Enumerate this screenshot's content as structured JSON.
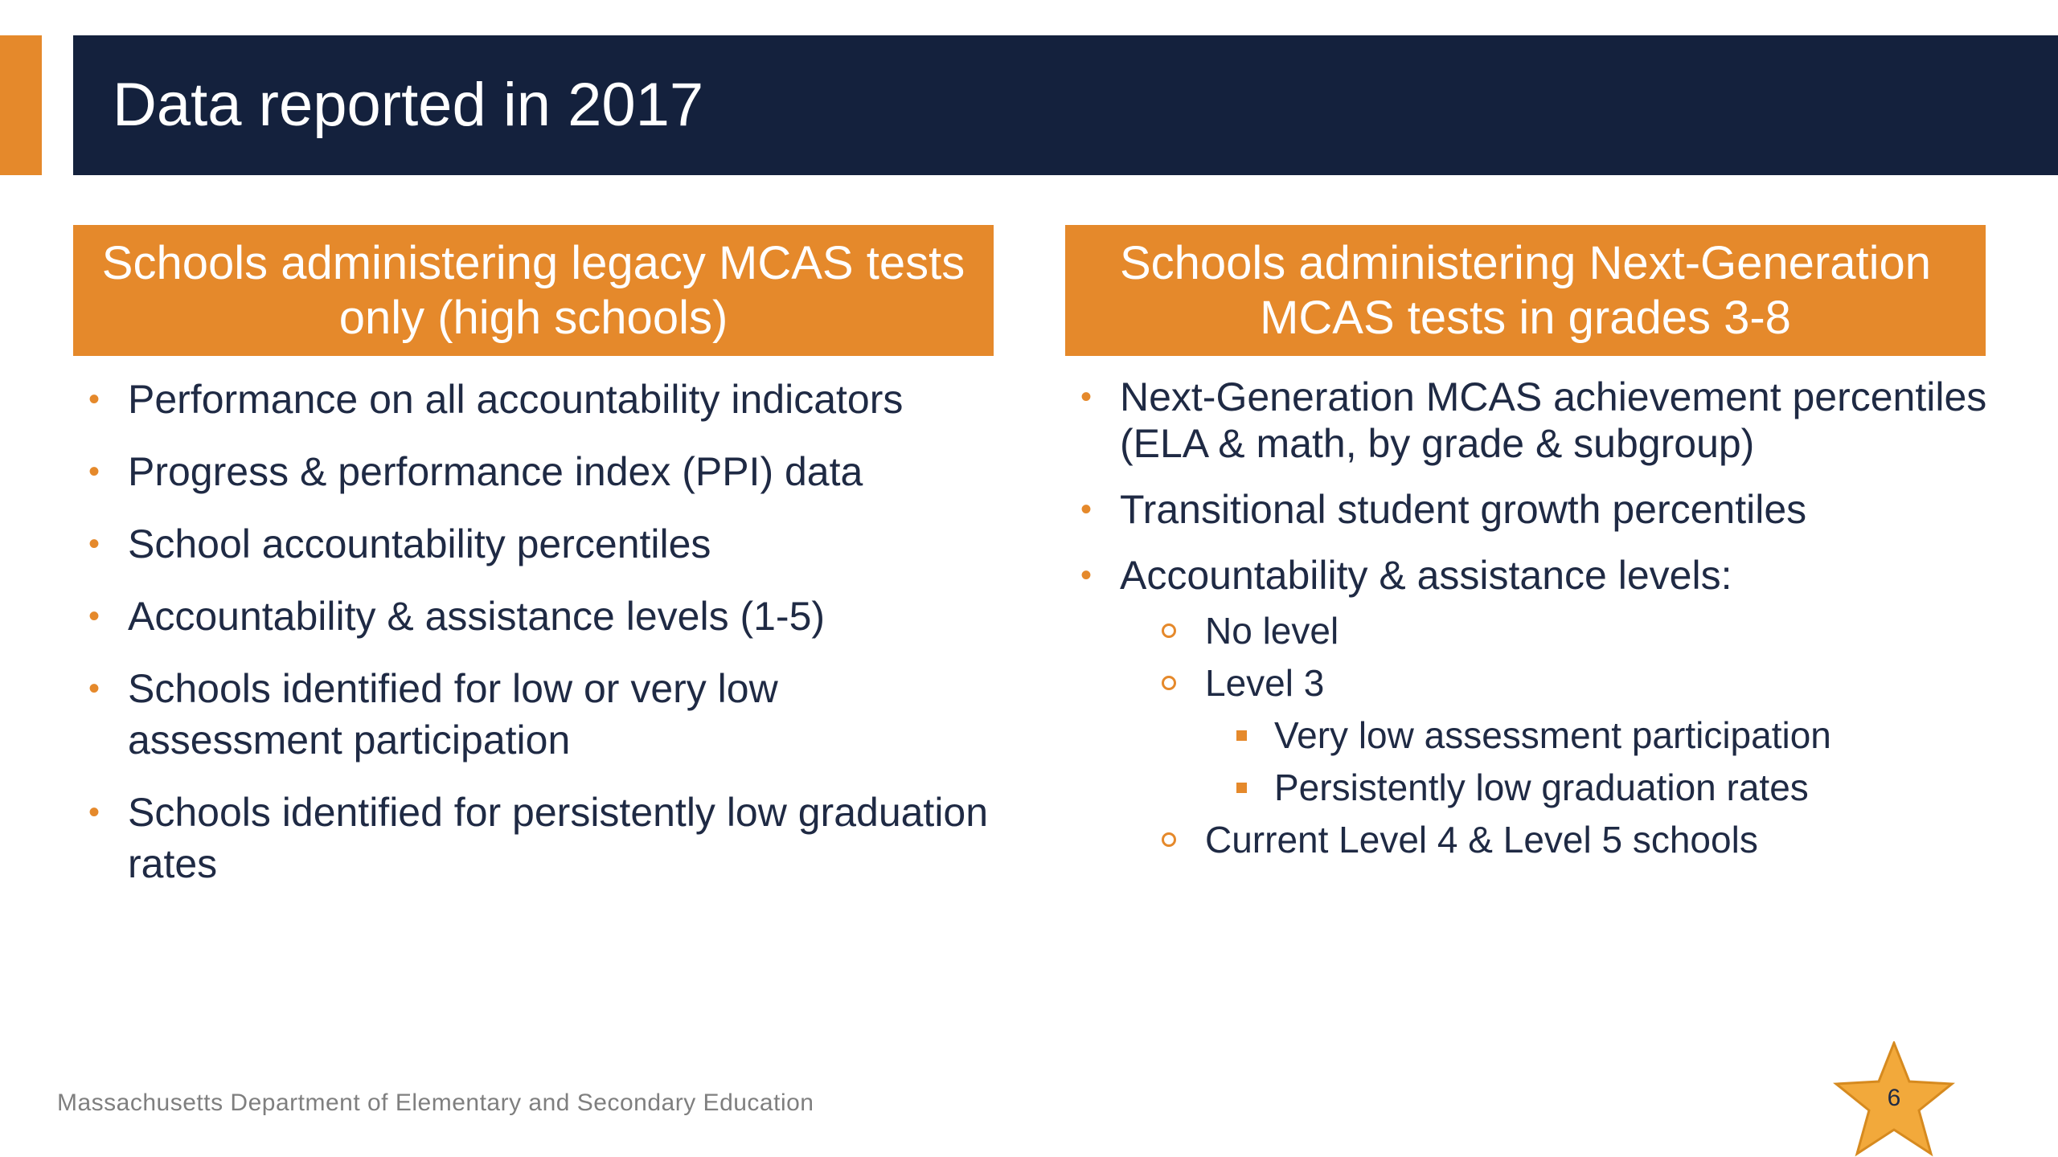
{
  "slide": {
    "title": "Data reported in 2017",
    "footer": "Massachusetts Department of Elementary and Secondary Education",
    "page_number": "6"
  },
  "left_column": {
    "header": "Schools administering legacy MCAS tests only (high schools)",
    "items": [
      "Performance on all accountability indicators",
      "Progress & performance index (PPI) data",
      "School accountability percentiles",
      "Accountability & assistance levels (1-5)",
      "Schools identified for low or very low assessment participation",
      "Schools identified for persistently low graduation rates"
    ]
  },
  "right_column": {
    "header": "Schools administering Next-Generation MCAS tests in grades 3-8",
    "items": [
      "Next-Generation MCAS achievement percentiles (ELA & math, by grade & subgroup)",
      "Transitional student growth percentiles",
      "Accountability & assistance levels:"
    ],
    "sub_items": [
      "No level",
      "Level 3",
      "Current Level 4 & Level 5 schools"
    ],
    "sub_sub_items": [
      "Very low assessment participation",
      "Persistently low graduation rates"
    ]
  },
  "colors": {
    "accent": "#E5892B",
    "title_band": "#14213D",
    "body_text": "#1F2A44",
    "footer_text": "#7F7F7F"
  }
}
